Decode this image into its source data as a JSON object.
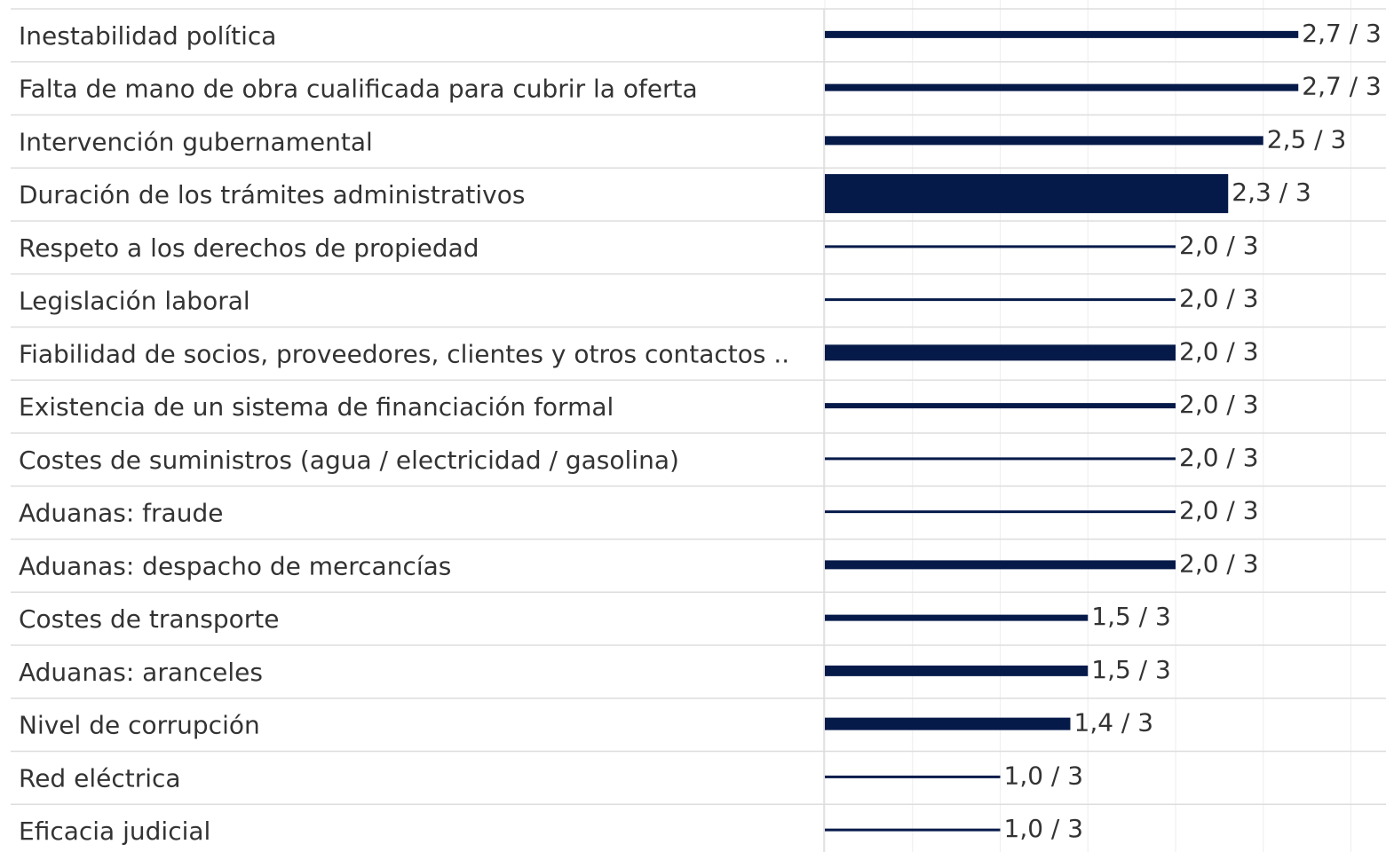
{
  "chart_data": {
    "type": "bar",
    "orientation": "horizontal",
    "categories": [
      "Inestabilidad política",
      "Falta de mano de obra cualificada para cubrir la oferta",
      "Intervención gubernamental",
      "Duración de los trámites administrativos",
      "Respeto a los derechos de propiedad",
      "Legislación laboral",
      "Fiabilidad de socios, proveedores, clientes y otros contactos ..",
      "Existencia de un sistema de financiación formal",
      "Costes de suministros (agua / electricidad / gasolina)",
      "Aduanas: fraude",
      "Aduanas: despacho de mercancías",
      "Costes de transporte",
      "Aduanas: aranceles",
      "Nivel de corrupción",
      "Red eléctrica",
      "Eficacia judicial"
    ],
    "values": [
      2.7,
      2.7,
      2.5,
      2.3,
      2.0,
      2.0,
      2.0,
      2.0,
      2.0,
      2.0,
      2.0,
      1.5,
      1.5,
      1.4,
      1.0,
      1.0
    ],
    "value_labels": [
      "2,7 / 3",
      "2,7 / 3",
      "2,5 / 3",
      "2,3 / 3",
      "2,0 / 3",
      "2,0 / 3",
      "2,0 / 3",
      "2,0 / 3",
      "2,0 / 3",
      "2,0 / 3",
      "2,0 / 3",
      "1,5 / 3",
      "1,5 / 3",
      "1,4 / 3",
      "1,0 / 3",
      "1,0 / 3"
    ],
    "sizes": [
      8,
      8,
      10,
      44,
      3,
      3,
      18,
      6,
      3,
      3,
      10,
      7,
      12,
      14,
      3,
      3
    ],
    "color": "#061a4a",
    "xlim": [
      0,
      3.2
    ],
    "xticks": [
      0,
      0.5,
      1,
      1.5,
      2,
      2.5,
      3
    ],
    "grid": true
  }
}
